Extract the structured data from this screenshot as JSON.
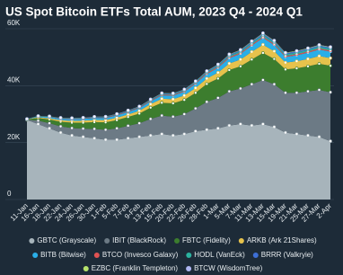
{
  "chart_data": {
    "type": "stacked-area",
    "title": "US Spot Bitcoin ETFs Total AUM, 2023 Q4 - 2024 Q1",
    "categories": [
      "11-Jan",
      "16-Jan",
      "18-Jan",
      "22-Jan",
      "24-Jan",
      "26-Jan",
      "30-Jan",
      "1-Feb",
      "5-Feb",
      "7-Feb",
      "9-Feb",
      "13-Feb",
      "15-Feb",
      "20-Feb",
      "22-Feb",
      "26-Feb",
      "28-Feb",
      "1-Mar",
      "5-Mar",
      "7-Mar",
      "11-Mar",
      "13-Mar",
      "15-Mar",
      "19-Mar",
      "21-Mar",
      "25-Mar",
      "27-Mar",
      "2-Apr"
    ],
    "series": [
      {
        "name": "GBTC (Grayscale)",
        "color": "#a7b4bb",
        "values": [
          28000,
          26500,
          25000,
          23500,
          22500,
          22000,
          21500,
          21000,
          21000,
          21500,
          22000,
          22500,
          23000,
          22500,
          23000,
          24000,
          24500,
          25000,
          26000,
          26500,
          26000,
          26500,
          25500,
          23500,
          23000,
          22500,
          22000,
          20500
        ]
      },
      {
        "name": "IBIT (BlackRock)",
        "color": "#6c7a85",
        "values": [
          100,
          1200,
          1800,
          2200,
          2600,
          2900,
          3300,
          3500,
          4000,
          4400,
          4800,
          5800,
          6500,
          6600,
          7000,
          8000,
          9800,
          10700,
          12000,
          12500,
          14500,
          15500,
          15000,
          14000,
          14500,
          15500,
          16500,
          17200
        ]
      },
      {
        "name": "FBTC (Fidelity)",
        "color": "#3c7d2e",
        "values": [
          100,
          900,
          1300,
          1600,
          1900,
          2100,
          2400,
          2600,
          2900,
          3100,
          3400,
          4000,
          4500,
          4700,
          5000,
          5500,
          6300,
          6800,
          7500,
          7800,
          8700,
          9500,
          8900,
          8200,
          8600,
          8800,
          9200,
          9300
        ]
      },
      {
        "name": "ARKB (Ark 21Shares)",
        "color": "#e6c24c",
        "values": [
          50,
          300,
          450,
          550,
          650,
          700,
          750,
          800,
          850,
          900,
          1000,
          1200,
          1400,
          1450,
          1550,
          1700,
          1900,
          2100,
          2300,
          2400,
          2700,
          2900,
          2700,
          2400,
          2500,
          2600,
          2700,
          2700
        ]
      },
      {
        "name": "BITB (Bitwise)",
        "color": "#2aaee8",
        "values": [
          50,
          300,
          450,
          550,
          600,
          650,
          700,
          750,
          800,
          850,
          900,
          1000,
          1200,
          1250,
          1300,
          1450,
          1600,
          1700,
          1900,
          2000,
          2200,
          2400,
          2200,
          2000,
          2100,
          2200,
          2300,
          2300
        ]
      },
      {
        "name": "BTCO (Invesco Galaxy)",
        "color": "#e05252",
        "values": [
          10,
          60,
          100,
          130,
          150,
          160,
          170,
          180,
          200,
          210,
          230,
          250,
          280,
          290,
          300,
          320,
          350,
          370,
          390,
          400,
          420,
          440,
          400,
          360,
          370,
          380,
          390,
          380
        ]
      },
      {
        "name": "HODL (VanEck)",
        "color": "#2bb3a0",
        "values": [
          10,
          50,
          80,
          100,
          110,
          120,
          130,
          140,
          150,
          160,
          170,
          190,
          210,
          220,
          230,
          260,
          300,
          360,
          420,
          460,
          520,
          580,
          560,
          540,
          560,
          580,
          600,
          600
        ]
      },
      {
        "name": "BRRR (Valkryie)",
        "color": "#3d6fd6",
        "values": [
          5,
          30,
          50,
          70,
          80,
          90,
          100,
          110,
          120,
          130,
          150,
          170,
          200,
          210,
          220,
          250,
          280,
          320,
          360,
          380,
          420,
          450,
          430,
          410,
          420,
          430,
          440,
          440
        ]
      },
      {
        "name": "EZBC (Franklin Templeton)",
        "color": "#b6e36c",
        "values": [
          5,
          20,
          30,
          40,
          45,
          50,
          55,
          60,
          65,
          70,
          75,
          80,
          90,
          95,
          100,
          110,
          120,
          130,
          140,
          150,
          160,
          170,
          160,
          150,
          155,
          160,
          165,
          165
        ]
      },
      {
        "name": "BTCW (WisdomTree)",
        "color": "#aeb6f2",
        "values": [
          2,
          5,
          8,
          10,
          12,
          14,
          16,
          18,
          20,
          22,
          24,
          26,
          28,
          30,
          32,
          35,
          38,
          40,
          42,
          44,
          46,
          48,
          46,
          44,
          45,
          46,
          47,
          47
        ]
      }
    ],
    "ylim": [
      0,
      60000
    ],
    "yticks": [
      0,
      {
        "value": 20000,
        "label": "20K"
      },
      {
        "value": 40000,
        "label": "40K"
      },
      {
        "value": 60000,
        "label": "60K"
      }
    ],
    "grid": true
  }
}
